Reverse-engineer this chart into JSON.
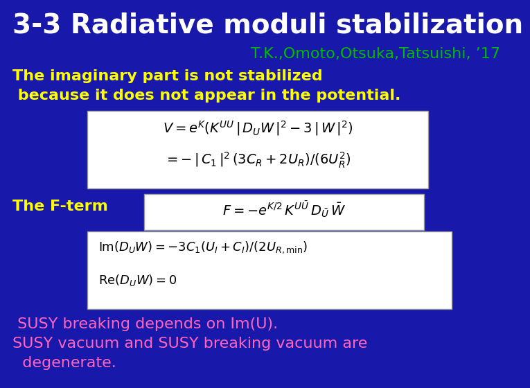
{
  "background_color": "#1818aa",
  "title": "3-3 Radiative moduli stabilization",
  "title_color": "#ffffff",
  "title_fontsize": 28,
  "subtitle": "T.K.,Omoto,Otsuka,Tatsuishi, ’17",
  "subtitle_color": "#00bb00",
  "subtitle_fontsize": 16,
  "yellow_text_1": "The imaginary part is not stabilized",
  "yellow_text_2": " because it does not appear in the potential.",
  "yellow_color": "#ffff00",
  "yellow_fontsize": 16,
  "fterm_label": "The F-term",
  "fterm_color": "#ffff00",
  "fterm_fontsize": 16,
  "pink_text_1": " SUSY breaking depends on Im(U).",
  "pink_text_2": "SUSY vacuum and SUSY breaking vacuum are",
  "pink_text_3": "  degenerate.",
  "pink_color": "#ff66bb",
  "pink_fontsize": 16,
  "eq_color": "#000000",
  "eq_bg": "#ffffff",
  "eq_fontsize": 14,
  "eq_fontsize2": 13
}
